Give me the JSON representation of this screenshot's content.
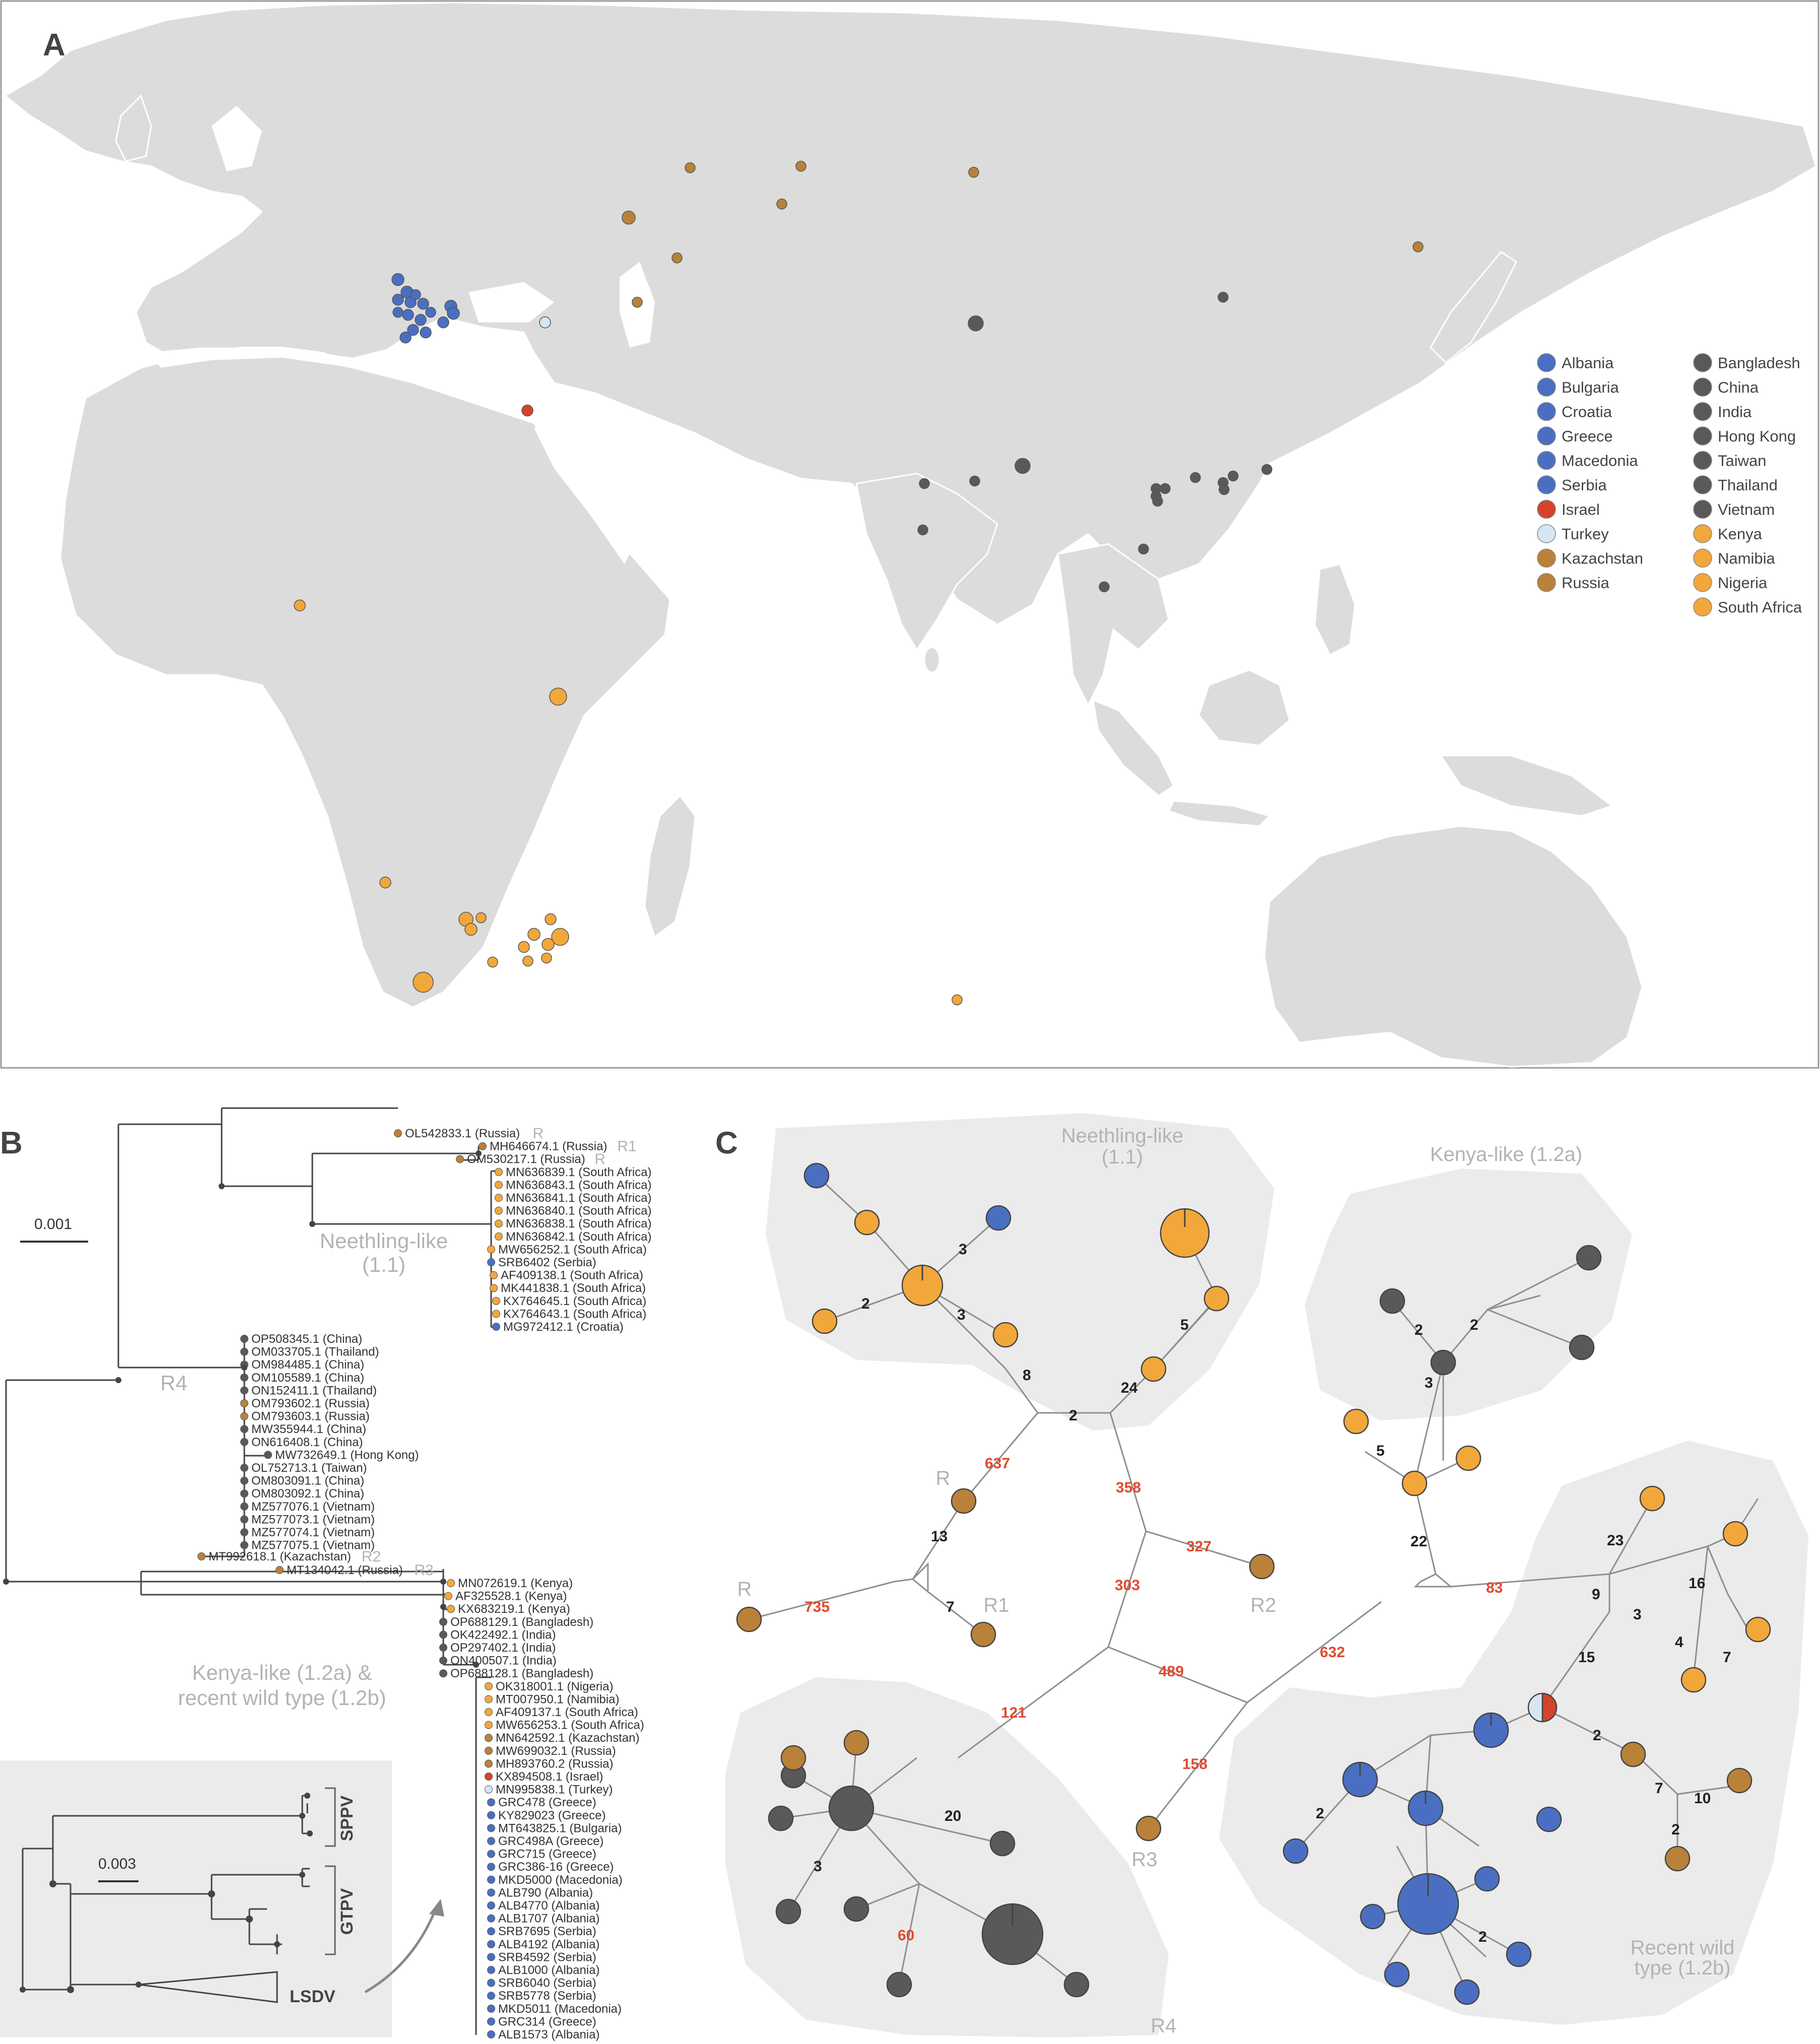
{
  "panels": {
    "a": "A",
    "b": "B",
    "c": "C"
  },
  "colors": {
    "blue": "#4a6fc2",
    "red": "#d4432b",
    "paleblue": "#d6e6f2",
    "brown": "#b98238",
    "darkgray": "#595959",
    "orange": "#f2a73b",
    "land": "#dcdcdc",
    "sea": "#ffffff",
    "shade": "#ebebeb"
  },
  "legend": {
    "col1": [
      {
        "label": "Albania",
        "color": "blue"
      },
      {
        "label": "Bulgaria",
        "color": "blue"
      },
      {
        "label": "Croatia",
        "color": "blue"
      },
      {
        "label": "Greece",
        "color": "blue"
      },
      {
        "label": "Macedonia",
        "color": "blue"
      },
      {
        "label": "Serbia",
        "color": "blue"
      },
      {
        "label": "Israel",
        "color": "red"
      },
      {
        "label": "Turkey",
        "color": "paleblue"
      },
      {
        "label": "Kazachstan",
        "color": "brown"
      },
      {
        "label": "Russia",
        "color": "brown"
      }
    ],
    "col2": [
      {
        "label": "Bangladesh",
        "color": "darkgray"
      },
      {
        "label": "China",
        "color": "darkgray"
      },
      {
        "label": "India",
        "color": "darkgray"
      },
      {
        "label": "Hong Kong",
        "color": "darkgray"
      },
      {
        "label": "Taiwan",
        "color": "darkgray"
      },
      {
        "label": "Thailand",
        "color": "darkgray"
      },
      {
        "label": "Vietnam",
        "color": "darkgray"
      },
      {
        "label": "Kenya",
        "color": "orange"
      },
      {
        "label": "Namibia",
        "color": "orange"
      },
      {
        "label": "Nigeria",
        "color": "orange"
      },
      {
        "label": "South Africa",
        "color": "orange"
      }
    ]
  },
  "tree": {
    "scale_main": "0.001",
    "scale_inset": "0.003",
    "clades": {
      "neethling": [
        "Neethling-like",
        "(1.1)"
      ],
      "kenya": [
        "Kenya-like (1.2a) &",
        "recent wild type (1.2b)"
      ],
      "r4": "R4"
    },
    "inset_labels": [
      "SPPV",
      "GTPV",
      "LSDV"
    ],
    "tips_neethling": [
      {
        "label": "OL542833.1 (Russia)",
        "color": "brown",
        "tag": "R"
      },
      {
        "label": "MH646674.1 (Russia)",
        "color": "brown",
        "tag": "R1"
      },
      {
        "label": "OM530217.1 (Russia)",
        "color": "brown",
        "tag": "R"
      },
      {
        "label": "MN636839.1 (South Africa)",
        "color": "orange"
      },
      {
        "label": "MN636843.1 (South Africa)",
        "color": "orange"
      },
      {
        "label": "MN636841.1 (South Africa)",
        "color": "orange"
      },
      {
        "label": "MN636840.1 (South Africa)",
        "color": "orange"
      },
      {
        "label": "MN636838.1 (South Africa)",
        "color": "orange"
      },
      {
        "label": "MN636842.1 (South Africa)",
        "color": "orange"
      },
      {
        "label": "MW656252.1 (South Africa)",
        "color": "orange"
      },
      {
        "label": "SRB6402 (Serbia)",
        "color": "blue"
      },
      {
        "label": "AF409138.1 (South Africa)",
        "color": "orange"
      },
      {
        "label": "MK441838.1 (South Africa)",
        "color": "orange"
      },
      {
        "label": "KX764645.1 (South Africa)",
        "color": "orange"
      },
      {
        "label": "KX764643.1 (South Africa)",
        "color": "orange"
      },
      {
        "label": "MG972412.1 (Croatia)",
        "color": "blue"
      }
    ],
    "tips_r4": [
      {
        "label": "OP508345.1 (China)",
        "color": "darkgray"
      },
      {
        "label": "OM033705.1 (Thailand)",
        "color": "darkgray"
      },
      {
        "label": "OM984485.1 (China)",
        "color": "darkgray"
      },
      {
        "label": "OM105589.1 (China)",
        "color": "darkgray"
      },
      {
        "label": "ON152411.1 (Thailand)",
        "color": "darkgray"
      },
      {
        "label": "OM793602.1 (Russia)",
        "color": "brown"
      },
      {
        "label": "OM793603.1 (Russia)",
        "color": "brown"
      },
      {
        "label": "MW355944.1 (China)",
        "color": "darkgray"
      },
      {
        "label": "ON616408.1 (China)",
        "color": "darkgray"
      },
      {
        "label": "MW732649.1 (Hong Kong)",
        "color": "darkgray"
      },
      {
        "label": "OL752713.1 (Taiwan)",
        "color": "darkgray"
      },
      {
        "label": "OM803091.1 (China)",
        "color": "darkgray"
      },
      {
        "label": "OM803092.1 (China)",
        "color": "darkgray"
      },
      {
        "label": "MZ577076.1 (Vietnam)",
        "color": "darkgray"
      },
      {
        "label": "MZ577073.1 (Vietnam)",
        "color": "darkgray"
      },
      {
        "label": "MZ577074.1 (Vietnam)",
        "color": "darkgray"
      },
      {
        "label": "MZ577075.1 (Vietnam)",
        "color": "darkgray"
      }
    ],
    "tips_mid": [
      {
        "label": "MT992618.1 (Kazachstan)",
        "color": "brown",
        "tag": "R2"
      },
      {
        "label": "MT134042.1 (Russia)",
        "color": "brown",
        "tag": "R3"
      }
    ],
    "tips_kenya": [
      {
        "label": "MN072619.1 (Kenya)",
        "color": "orange"
      },
      {
        "label": "AF325528.1 (Kenya)",
        "color": "orange"
      },
      {
        "label": "KX683219.1 (Kenya)",
        "color": "orange"
      },
      {
        "label": "OP688129.1 (Bangladesh)",
        "color": "darkgray"
      },
      {
        "label": "OK422492.1 (India)",
        "color": "darkgray"
      },
      {
        "label": "OP297402.1 (India)",
        "color": "darkgray"
      },
      {
        "label": "ON400507.1 (India)",
        "color": "darkgray"
      },
      {
        "label": "OP688128.1 (Bangladesh)",
        "color": "darkgray"
      },
      {
        "label": "OK318001.1 (Nigeria)",
        "color": "orange"
      },
      {
        "label": "MT007950.1 (Namibia)",
        "color": "orange"
      },
      {
        "label": "AF409137.1 (South Africa)",
        "color": "orange"
      },
      {
        "label": "MW656253.1 (South Africa)",
        "color": "orange"
      },
      {
        "label": "MN642592.1 (Kazachstan)",
        "color": "brown"
      },
      {
        "label": "MW699032.1 (Russia)",
        "color": "brown"
      },
      {
        "label": "MH893760.2 (Russia)",
        "color": "brown"
      },
      {
        "label": "KX894508.1 (Israel)",
        "color": "red"
      },
      {
        "label": "MN995838.1 (Turkey)",
        "color": "paleblue"
      },
      {
        "label": "GRC478 (Greece)",
        "color": "blue"
      },
      {
        "label": "KY829023 (Greece)",
        "color": "blue"
      },
      {
        "label": "MT643825.1 (Bulgaria)",
        "color": "blue"
      },
      {
        "label": "GRC498A (Greece)",
        "color": "blue"
      },
      {
        "label": "GRC715 (Greece)",
        "color": "blue"
      },
      {
        "label": "GRC386-16 (Greece)",
        "color": "blue"
      },
      {
        "label": "MKD5000 (Macedonia)",
        "color": "blue"
      },
      {
        "label": "ALB790 (Albania)",
        "color": "blue"
      },
      {
        "label": "ALB4770 (Albania)",
        "color": "blue"
      },
      {
        "label": "ALB1707 (Albania)",
        "color": "blue"
      },
      {
        "label": "SRB7695 (Serbia)",
        "color": "blue"
      },
      {
        "label": "ALB4192 (Albania)",
        "color": "blue"
      },
      {
        "label": "SRB4592 (Serbia)",
        "color": "blue"
      },
      {
        "label": "ALB1000 (Albania)",
        "color": "blue"
      },
      {
        "label": "SRB6040 (Serbia)",
        "color": "blue"
      },
      {
        "label": "SRB5778 (Serbia)",
        "color": "blue"
      },
      {
        "label": "MKD5011 (Macedonia)",
        "color": "blue"
      },
      {
        "label": "GRC314 (Greece)",
        "color": "blue"
      },
      {
        "label": "ALB1573 (Albania)",
        "color": "blue"
      }
    ]
  },
  "network": {
    "groups": {
      "neethling": [
        "Neethling-like",
        "(1.1)"
      ],
      "kenya": "Kenya-like (1.2a)",
      "recent": [
        "Recent wild",
        "type (1.2b)"
      ],
      "r4": "R4"
    },
    "labels": {
      "R_top": "R",
      "R_left": "R",
      "R1": "R1",
      "R2": "R2",
      "R3": "R3"
    },
    "mutations_black": [
      "3",
      "2",
      "3",
      "8",
      "2",
      "24",
      "5",
      "2",
      "2",
      "3",
      "5",
      "22",
      "13",
      "7",
      "20",
      "3",
      "23",
      "9",
      "16",
      "3",
      "4",
      "7",
      "15",
      "2",
      "7",
      "10",
      "2",
      "2",
      "2"
    ],
    "mutations_red": [
      "637",
      "358",
      "327",
      "735",
      "303",
      "489",
      "632",
      "83",
      "121",
      "158",
      "60"
    ]
  }
}
